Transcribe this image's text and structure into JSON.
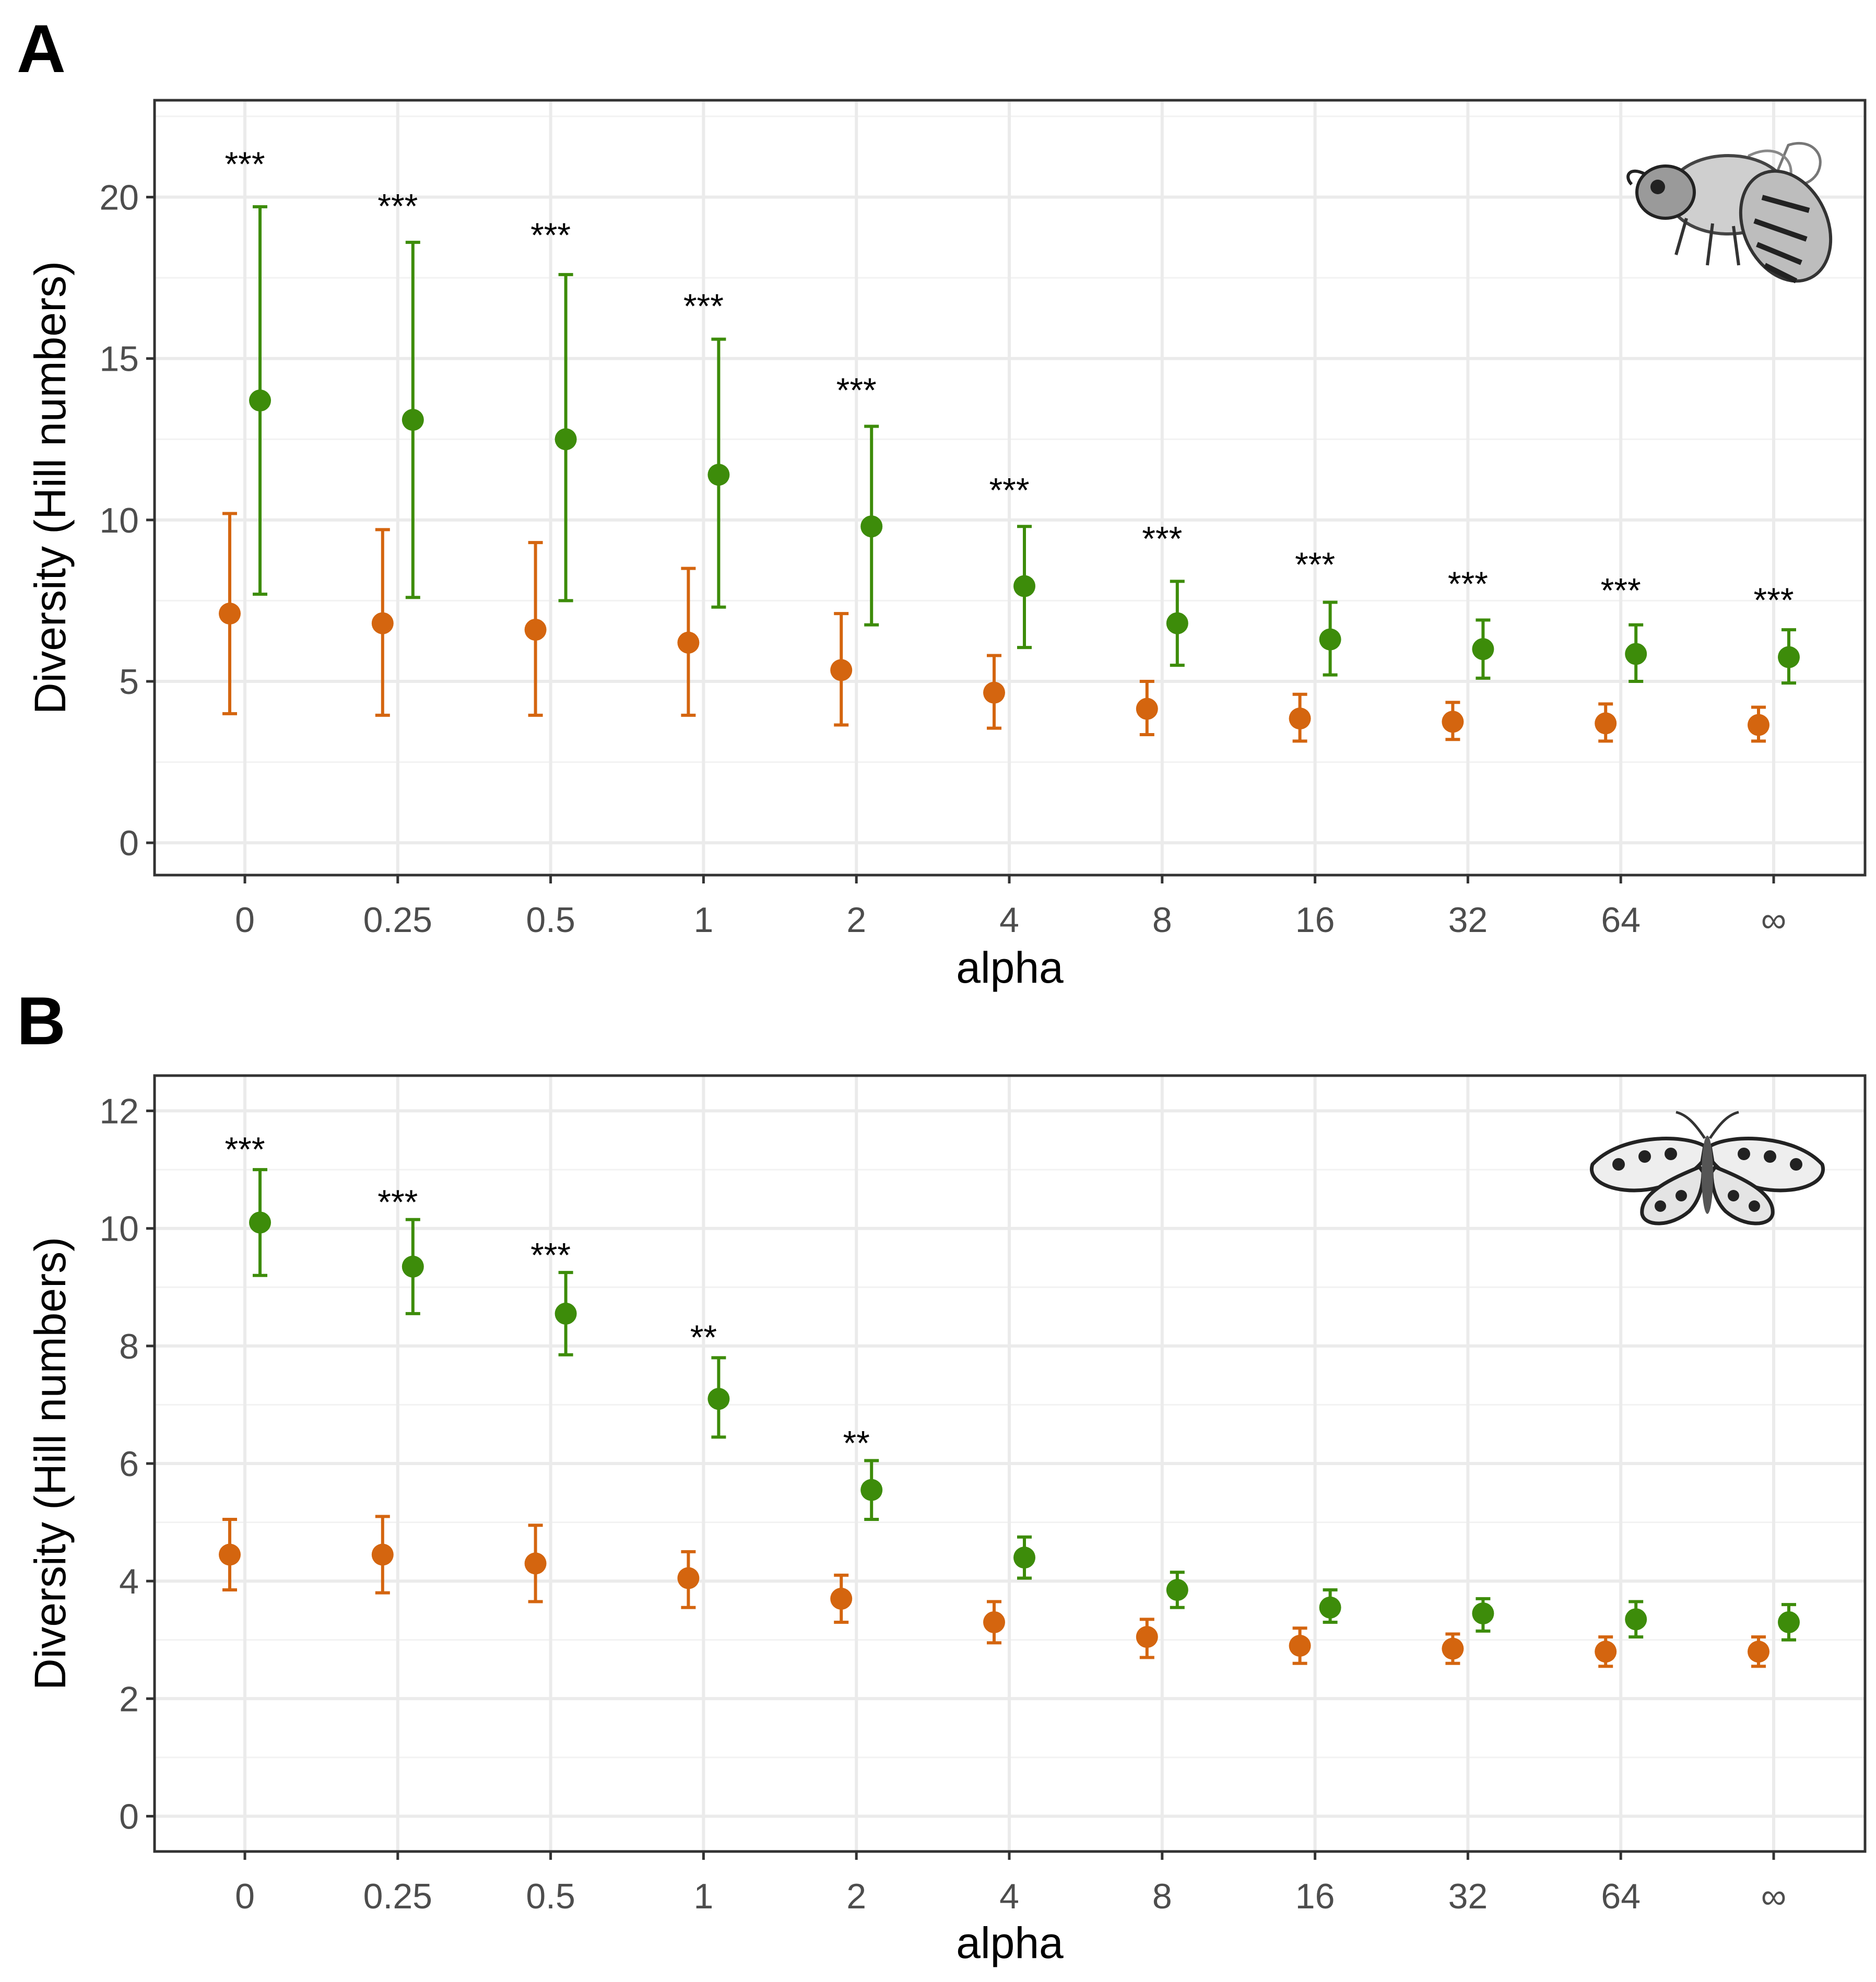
{
  "figure": {
    "colors": {
      "orange": "#d4650f",
      "green": "#3d8c0a"
    },
    "icons": {
      "panel_a": "bee-icon",
      "panel_b": "butterfly-icon"
    }
  },
  "chart_data": [
    {
      "panel": "A",
      "type": "scatter",
      "subtype": "point-errorbar",
      "xlabel": "alpha",
      "ylabel": "Diversity (Hill numbers)",
      "categories": [
        "0",
        "0.25",
        "0.5",
        "1",
        "2",
        "4",
        "8",
        "16",
        "32",
        "64",
        "∞"
      ],
      "ylim": [
        -1,
        23
      ],
      "yticks": [
        0,
        5,
        10,
        15,
        20
      ],
      "yticks_labels": [
        "0",
        "5",
        "10",
        "15",
        "20"
      ],
      "grid": true,
      "series": [
        {
          "name": "orange",
          "color": "#d4650f",
          "values": [
            7.1,
            6.8,
            6.6,
            6.2,
            5.35,
            4.65,
            4.15,
            3.85,
            3.75,
            3.7,
            3.65
          ],
          "lower": [
            4.0,
            3.95,
            3.95,
            3.95,
            3.65,
            3.55,
            3.35,
            3.15,
            3.2,
            3.15,
            3.15
          ],
          "upper": [
            10.2,
            9.7,
            9.3,
            8.5,
            7.1,
            5.8,
            5.0,
            4.6,
            4.35,
            4.3,
            4.2
          ]
        },
        {
          "name": "green",
          "color": "#3d8c0a",
          "values": [
            13.7,
            13.1,
            12.5,
            11.4,
            9.8,
            7.95,
            6.8,
            6.3,
            6.0,
            5.85,
            5.75
          ],
          "lower": [
            7.7,
            7.6,
            7.5,
            7.3,
            6.75,
            6.05,
            5.5,
            5.2,
            5.1,
            5.0,
            4.95
          ],
          "upper": [
            19.7,
            18.6,
            17.6,
            15.6,
            12.9,
            9.8,
            8.1,
            7.45,
            6.9,
            6.75,
            6.6
          ]
        }
      ],
      "annotations": [
        "***",
        "***",
        "***",
        "***",
        "***",
        "***",
        "***",
        "***",
        "***",
        "***",
        "***"
      ],
      "annotation_y": [
        21.3,
        20.0,
        19.1,
        16.9,
        14.3,
        11.2,
        9.7,
        8.9,
        8.3,
        8.1,
        7.8
      ]
    },
    {
      "panel": "B",
      "type": "scatter",
      "subtype": "point-errorbar",
      "xlabel": "alpha",
      "ylabel": "Diversity (Hill numbers)",
      "categories": [
        "0",
        "0.25",
        "0.5",
        "1",
        "2",
        "4",
        "8",
        "16",
        "32",
        "64",
        "∞"
      ],
      "ylim": [
        -0.6,
        12.6
      ],
      "yticks": [
        0,
        2,
        4,
        6,
        8,
        10,
        12
      ],
      "yticks_labels": [
        "0",
        "2",
        "4",
        "6",
        "8",
        "10",
        "12"
      ],
      "grid": true,
      "series": [
        {
          "name": "orange",
          "color": "#d4650f",
          "values": [
            4.45,
            4.45,
            4.3,
            4.05,
            3.7,
            3.3,
            3.05,
            2.9,
            2.85,
            2.8,
            2.8
          ],
          "lower": [
            3.85,
            3.8,
            3.65,
            3.55,
            3.3,
            2.95,
            2.7,
            2.6,
            2.6,
            2.55,
            2.55
          ],
          "upper": [
            5.05,
            5.1,
            4.95,
            4.5,
            4.1,
            3.65,
            3.35,
            3.2,
            3.1,
            3.05,
            3.05
          ]
        },
        {
          "name": "green",
          "color": "#3d8c0a",
          "values": [
            10.1,
            9.35,
            8.55,
            7.1,
            5.55,
            4.4,
            3.85,
            3.55,
            3.45,
            3.35,
            3.3
          ],
          "lower": [
            9.2,
            8.55,
            7.85,
            6.45,
            5.05,
            4.05,
            3.55,
            3.3,
            3.15,
            3.05,
            3.0
          ],
          "upper": [
            11.0,
            10.15,
            9.25,
            7.8,
            6.05,
            4.75,
            4.15,
            3.85,
            3.7,
            3.65,
            3.6
          ]
        }
      ],
      "annotations": [
        "***",
        "***",
        "***",
        "**",
        "**",
        "",
        "",
        "",
        "",
        "",
        ""
      ],
      "annotation_y": [
        11.5,
        10.6,
        9.7,
        8.3,
        6.5,
        0,
        0,
        0,
        0,
        0,
        0
      ]
    }
  ]
}
